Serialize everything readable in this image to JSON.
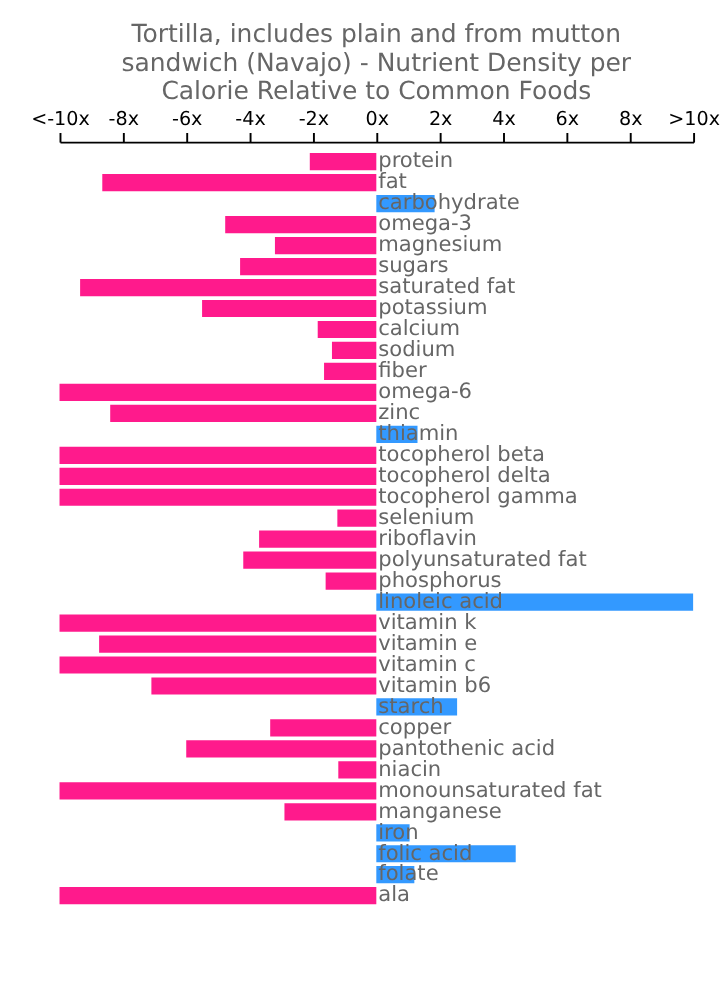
{
  "chart_data": {
    "type": "bar",
    "orientation": "horizontal",
    "title": "Tortilla, includes plain and from mutton sandwich (Navajo) - Nutrient Density per Calorie Relative to Common Foods",
    "categories": [
      "protein",
      "fat",
      "carbohydrate",
      "omega-3",
      "magnesium",
      "sugars",
      "saturated fat",
      "potassium",
      "calcium",
      "sodium",
      "fiber",
      "omega-6",
      "zinc",
      "thiamin",
      "tocopherol beta",
      "tocopherol delta",
      "tocopherol gamma",
      "selenium",
      "riboflavin",
      "polyunsaturated fat",
      "phosphorus",
      "linoleic acid",
      "vitamin k",
      "vitamin e",
      "vitamin c",
      "vitamin b6",
      "starch",
      "copper",
      "pantothenic acid",
      "niacin",
      "monounsaturated fat",
      "manganese",
      "iron",
      "folic acid",
      "folate",
      "ala"
    ],
    "values": [
      -2.1,
      -8.65,
      1.84,
      -4.77,
      -3.2,
      -4.3,
      -9.35,
      -5.5,
      -1.85,
      -1.4,
      -1.65,
      -10,
      -8.4,
      1.3,
      -10,
      -10,
      -10,
      -1.23,
      -3.7,
      -4.2,
      -1.6,
      10,
      -10,
      -8.75,
      -10,
      -7.1,
      2.55,
      -3.35,
      -6.0,
      -1.2,
      -10,
      -2.9,
      1.05,
      4.4,
      1.2,
      -10
    ],
    "colors": [
      "#ff1a8c",
      "#ff1a8c",
      "#3399ff",
      "#ff1a8c",
      "#ff1a8c",
      "#ff1a8c",
      "#ff1a8c",
      "#ff1a8c",
      "#ff1a8c",
      "#ff1a8c",
      "#ff1a8c",
      "#ff1a8c",
      "#ff1a8c",
      "#3399ff",
      "#ff1a8c",
      "#ff1a8c",
      "#ff1a8c",
      "#ff1a8c",
      "#ff1a8c",
      "#ff1a8c",
      "#ff1a8c",
      "#3399ff",
      "#ff1a8c",
      "#ff1a8c",
      "#ff1a8c",
      "#ff1a8c",
      "#3399ff",
      "#ff1a8c",
      "#ff1a8c",
      "#ff1a8c",
      "#ff1a8c",
      "#ff1a8c",
      "#3399ff",
      "#3399ff",
      "#3399ff",
      "#ff1a8c"
    ],
    "xlim": [
      -10,
      10
    ],
    "xticks": [
      {
        "value": -10,
        "label": "<-10x"
      },
      {
        "value": -8,
        "label": "-8x"
      },
      {
        "value": -6,
        "label": "-6x"
      },
      {
        "value": -4,
        "label": "-4x"
      },
      {
        "value": -2,
        "label": "-2x"
      },
      {
        "value": 0,
        "label": "0x"
      },
      {
        "value": 2,
        "label": "2x"
      },
      {
        "value": 4,
        "label": "4x"
      },
      {
        "value": 6,
        "label": "6x"
      },
      {
        "value": 8,
        "label": "8x"
      },
      {
        "value": 10,
        "label": ">10x"
      }
    ],
    "grid": false
  }
}
